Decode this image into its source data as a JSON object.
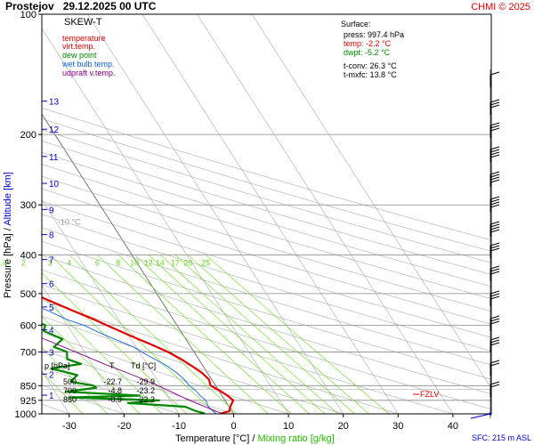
{
  "header": {
    "station": "Prostejov",
    "datetime": "29.12.2025 00 UTC",
    "credit": "CHMI © 2025",
    "diagram_label": "SKEW-T"
  },
  "colors": {
    "temperature": "#e00000",
    "virt_temp": "#e00000",
    "dew_point": "#008800",
    "wet_bulb": "#1060e0",
    "updraft": "#880088",
    "isobar": "#888888",
    "isotherm": "#aaaaaa",
    "mixing": "#66dd22",
    "blue_label": "#0000cc",
    "wind": "#000000"
  },
  "legend": [
    {
      "label": "temperature",
      "color": "#e00000"
    },
    {
      "label": "virt.temp.",
      "color": "#e00000"
    },
    {
      "label": "dew point",
      "color": "#008800"
    },
    {
      "label": "wet bulb temp.",
      "color": "#1060e0"
    },
    {
      "label": "udpraft v.temp.",
      "color": "#880088"
    }
  ],
  "surface": {
    "title": "Surface:",
    "press": "press: 997.4 hPa",
    "temp": "temp: -2.2 °C",
    "dwpt": "dwpt: -5.2 °C",
    "tconv": "t-conv: 26.3 °C",
    "tmxfc": "t-mxfc: 13.8 °C"
  },
  "table": {
    "headers": [
      "p [hPa]",
      "T",
      "Td [°C]"
    ],
    "rows": [
      [
        "500",
        "-22.7",
        "-29.9"
      ],
      [
        "700",
        "-4.8",
        "-23.2"
      ],
      [
        "850",
        "-0.9",
        "-22.3"
      ]
    ]
  },
  "fzlv_label": "FZLV",
  "sfc_label": "SFC: 215 m ASL",
  "axes": {
    "ylabel_left": "Pressure [hPa]",
    "ylabel_sep": " / ",
    "ylabel_right": "Altitude [km]",
    "xlabel_left": "Temperature [°C]",
    "xlabel_sep": " / ",
    "xlabel_right": "Mixing ratio [g/kg]"
  },
  "chart_data": {
    "type": "line",
    "pressure_ticks": [
      {
        "p": 100,
        "label": "100"
      },
      {
        "p": 200,
        "label": "200"
      },
      {
        "p": 300,
        "label": "300"
      },
      {
        "p": 400,
        "label": "400"
      },
      {
        "p": 500,
        "label": "500"
      },
      {
        "p": 600,
        "label": "600"
      },
      {
        "p": 700,
        "label": "700"
      },
      {
        "p": 850,
        "label": "850"
      },
      {
        "p": 925,
        "label": "925"
      },
      {
        "p": 1000,
        "label": "1000"
      }
    ],
    "temp_ticks": [
      -30,
      -20,
      -10,
      0,
      10,
      20,
      30,
      40
    ],
    "temp_range": [
      -35,
      47
    ],
    "pressure_range": [
      100,
      1000
    ],
    "skew_isotherm_labels": [
      {
        "t": -80,
        "p": 112,
        "label": "-80 °C"
      },
      {
        "t": -70,
        "p": 128,
        "label": "-70"
      },
      {
        "t": -60,
        "p": 148,
        "label": "-60"
      },
      {
        "t": -50,
        "p": 174,
        "label": "-50"
      },
      {
        "t": -40,
        "p": 205,
        "label": "-40"
      },
      {
        "t": -30,
        "p": 243,
        "label": "-30"
      },
      {
        "t": -20,
        "p": 287,
        "label": "-20"
      },
      {
        "t": -10,
        "p": 336,
        "label": "-10 °C"
      }
    ],
    "altitude_ticks": [
      {
        "km": 1,
        "p": 898
      },
      {
        "km": 2,
        "p": 795
      },
      {
        "km": 3,
        "p": 701
      },
      {
        "km": 4,
        "p": 616
      },
      {
        "km": 5,
        "p": 540
      },
      {
        "km": 6,
        "p": 472
      },
      {
        "km": 7,
        "p": 411
      },
      {
        "km": 8,
        "p": 356
      },
      {
        "km": 9,
        "p": 308
      },
      {
        "km": 10,
        "p": 265
      },
      {
        "km": 11,
        "p": 227
      },
      {
        "km": 12,
        "p": 194
      },
      {
        "km": 13,
        "p": 165
      }
    ],
    "mixing_ratio_labels": [
      "0.2",
      "0.4",
      "0.6",
      "1",
      "1.4",
      "2",
      "3",
      "4",
      "6",
      "8",
      "10",
      "12",
      "14",
      "17",
      "20",
      "25"
    ],
    "mixing_ratio_values": [
      0.2,
      0.4,
      0.6,
      1,
      1.4,
      2,
      3,
      4,
      6,
      8,
      10,
      12,
      14,
      17,
      20,
      25
    ],
    "series": [
      {
        "name": "temperature",
        "points": [
          [
            997,
            -2.2
          ],
          [
            985,
            -0.5
          ],
          [
            960,
            0.2
          ],
          [
            925,
            1.5
          ],
          [
            900,
            1.0
          ],
          [
            875,
            0.2
          ],
          [
            850,
            -0.9
          ],
          [
            820,
            -0.5
          ],
          [
            790,
            -1.0
          ],
          [
            760,
            -2.0
          ],
          [
            730,
            -3.2
          ],
          [
            700,
            -4.8
          ],
          [
            670,
            -7.0
          ],
          [
            640,
            -9.5
          ],
          [
            610,
            -12.0
          ],
          [
            580,
            -14.5
          ],
          [
            550,
            -17.5
          ],
          [
            520,
            -20.5
          ],
          [
            500,
            -22.7
          ],
          [
            470,
            -26.0
          ],
          [
            440,
            -29.5
          ],
          [
            410,
            -33.5
          ],
          [
            380,
            -37.5
          ],
          [
            350,
            -41.5
          ],
          [
            320,
            -46.0
          ],
          [
            300,
            -49.5
          ],
          [
            280,
            -52.5
          ],
          [
            260,
            -55.5
          ],
          [
            240,
            -57.5
          ],
          [
            220,
            -58.5
          ],
          [
            200,
            -60.0
          ],
          [
            185,
            -61.0
          ],
          [
            170,
            -61.5
          ],
          [
            160,
            -62.0
          ],
          [
            150,
            -63.0
          ],
          [
            140,
            -64.5
          ],
          [
            130,
            -66.0
          ],
          [
            120,
            -68.0
          ],
          [
            115,
            -69.5
          ],
          [
            110,
            -71.0
          ]
        ]
      },
      {
        "name": "dew point",
        "points": [
          [
            997,
            -5.2
          ],
          [
            985,
            -6.5
          ],
          [
            960,
            -8.0
          ],
          [
            940,
            -18.0
          ],
          [
            925,
            -12.0
          ],
          [
            910,
            -28.0
          ],
          [
            900,
            -15.0
          ],
          [
            880,
            -28.0
          ],
          [
            860,
            -22.0
          ],
          [
            850,
            -22.3
          ],
          [
            830,
            -26.0
          ],
          [
            800,
            -24.0
          ],
          [
            770,
            -28.0
          ],
          [
            750,
            -22.0
          ],
          [
            730,
            -24.0
          ],
          [
            700,
            -23.2
          ],
          [
            680,
            -25.0
          ],
          [
            650,
            -22.5
          ],
          [
            620,
            -25.0
          ],
          [
            600,
            -24.0
          ],
          [
            580,
            -26.0
          ],
          [
            560,
            -27.0
          ],
          [
            540,
            -30.0
          ],
          [
            520,
            -34.0
          ],
          [
            500,
            -29.9
          ],
          [
            480,
            -35.0
          ],
          [
            460,
            -33.0
          ],
          [
            440,
            -38.0
          ],
          [
            420,
            -35.5
          ],
          [
            400,
            -41.0
          ],
          [
            380,
            -45.0
          ],
          [
            360,
            -46.0
          ],
          [
            340,
            -52.0
          ],
          [
            320,
            -56.0
          ],
          [
            300,
            -62.0
          ],
          [
            280,
            -65.0
          ],
          [
            260,
            -69.0
          ],
          [
            240,
            -71.0
          ],
          [
            220,
            -73.0
          ],
          [
            200,
            -75.0
          ],
          [
            185,
            -76.0
          ],
          [
            170,
            -78.0
          ],
          [
            160,
            -77.0
          ],
          [
            150,
            -80.0
          ],
          [
            140,
            -82.0
          ],
          [
            130,
            -83.0
          ],
          [
            120,
            -86.0
          ],
          [
            115,
            -87.0
          ]
        ]
      },
      {
        "name": "wet bulb temp.",
        "points": [
          [
            997,
            -3.2
          ],
          [
            960,
            -3.8
          ],
          [
            925,
            -3.5
          ],
          [
            900,
            -4.0
          ],
          [
            875,
            -4.2
          ],
          [
            850,
            -4.8
          ],
          [
            820,
            -5.0
          ],
          [
            790,
            -5.6
          ],
          [
            760,
            -6.5
          ],
          [
            730,
            -8.0
          ],
          [
            700,
            -9.6
          ],
          [
            680,
            -10.5
          ],
          [
            650,
            -13.0
          ],
          [
            620,
            -15.5
          ],
          [
            600,
            -17.0
          ],
          [
            580,
            -19.5
          ],
          [
            550,
            -22.0
          ],
          [
            520,
            -25.5
          ],
          [
            500,
            -27.5
          ],
          [
            470,
            -31.5
          ],
          [
            440,
            -35.0
          ],
          [
            410,
            -38.5
          ],
          [
            380,
            -42.0
          ],
          [
            350,
            -46.0
          ],
          [
            320,
            -51.0
          ]
        ]
      },
      {
        "name": "udpraft v.temp.",
        "points": [
          [
            997,
            -2.2
          ],
          [
            925,
            -6.5
          ],
          [
            850,
            -10.5
          ],
          [
            800,
            -13.8
          ],
          [
            750,
            -17.8
          ],
          [
            700,
            -21.6
          ],
          [
            650,
            -25.8
          ],
          [
            600,
            -30.4
          ],
          [
            550,
            -35.6
          ],
          [
            500,
            -41.2
          ],
          [
            450,
            -47.4
          ],
          [
            400,
            -54.6
          ],
          [
            350,
            -62.6
          ],
          [
            300,
            -71.8
          ],
          [
            250,
            -82.4
          ],
          [
            200,
            -94.8
          ],
          [
            170,
            -103.6
          ],
          [
            150,
            -110.6
          ]
        ]
      }
    ],
    "fzlv_p": 869,
    "surface_p": 997.4
  }
}
